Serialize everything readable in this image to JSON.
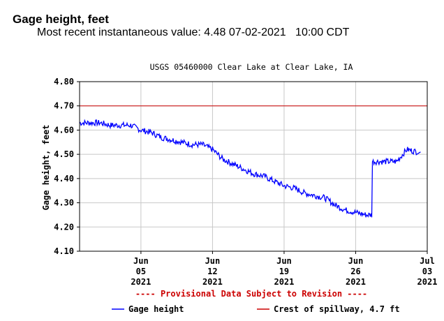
{
  "header": {
    "title": "Gage height, feet",
    "recent_prefix": "Most recent instantaneous value:",
    "recent_value": "4.48",
    "recent_date": "07-02-2021",
    "recent_time": "10:00 CDT"
  },
  "chart_data": {
    "type": "line",
    "title": "USGS 05460000 Clear Lake at Clear Lake, IA",
    "ylabel": "Gage height, feet",
    "xlabel": "",
    "ylim": [
      4.1,
      4.8
    ],
    "yticks": [
      "4.80",
      "4.70",
      "4.60",
      "4.50",
      "4.40",
      "4.30",
      "4.20",
      "4.10"
    ],
    "xlim_days": [
      "2021-05-30",
      "2021-07-03"
    ],
    "xticks": [
      {
        "date": "2021-06-05",
        "label": [
          "Jun",
          "05",
          "2021"
        ]
      },
      {
        "date": "2021-06-12",
        "label": [
          "Jun",
          "12",
          "2021"
        ]
      },
      {
        "date": "2021-06-19",
        "label": [
          "Jun",
          "19",
          "2021"
        ]
      },
      {
        "date": "2021-06-26",
        "label": [
          "Jun",
          "26",
          "2021"
        ]
      },
      {
        "date": "2021-07-03",
        "label": [
          "Jul",
          "03",
          "2021"
        ]
      }
    ],
    "grid": true,
    "provisional_note": "---- Provisional Data Subject to Revision ----",
    "series": [
      {
        "name": "Gage height",
        "color": "#0000ff",
        "x": [
          "2021-05-30",
          "2021-05-31",
          "2021-06-01",
          "2021-06-02",
          "2021-06-03",
          "2021-06-04",
          "2021-06-05",
          "2021-06-06",
          "2021-06-07",
          "2021-06-08",
          "2021-06-09",
          "2021-06-10",
          "2021-06-11",
          "2021-06-12",
          "2021-06-13",
          "2021-06-14",
          "2021-06-15",
          "2021-06-16",
          "2021-06-17",
          "2021-06-18",
          "2021-06-19",
          "2021-06-20",
          "2021-06-21",
          "2021-06-22",
          "2021-06-23",
          "2021-06-24",
          "2021-06-25",
          "2021-06-26",
          "2021-06-27",
          "2021-06-28",
          "2021-06-29",
          "2021-06-30",
          "2021-07-01",
          "2021-07-02"
        ],
        "y": [
          4.63,
          4.63,
          4.63,
          4.62,
          4.62,
          4.62,
          4.6,
          4.59,
          4.57,
          4.56,
          4.55,
          4.54,
          4.54,
          4.52,
          4.48,
          4.46,
          4.44,
          4.42,
          4.41,
          4.39,
          4.37,
          4.36,
          4.34,
          4.33,
          4.32,
          4.29,
          4.27,
          4.26,
          4.25,
          4.47,
          4.47,
          4.47,
          4.52,
          4.51
        ]
      },
      {
        "name": "Crest of spillway, 4.7 ft",
        "color": "#cc0000",
        "x": [
          "2021-05-30",
          "2021-07-03"
        ],
        "y": [
          4.7,
          4.7
        ]
      }
    ],
    "legend": {
      "placement": "bottom",
      "items": [
        {
          "label": "Gage height",
          "color": "#0000ff"
        },
        {
          "label": "Crest of spillway, 4.7 ft",
          "color": "#cc0000"
        }
      ]
    }
  }
}
